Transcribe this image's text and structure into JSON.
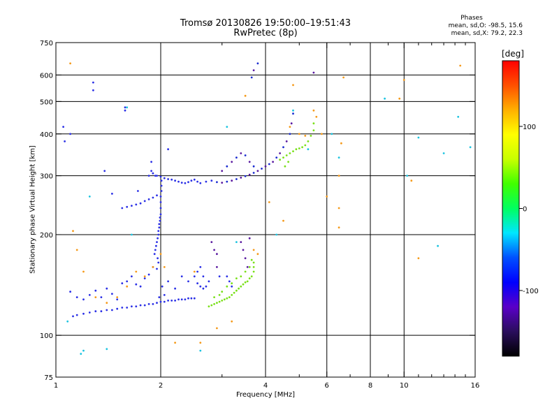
{
  "header": {
    "title": "Tromsø 20130826 19:50:00–19:51:43",
    "subtitle": "RwPretec (8p)",
    "stats_title": "Phases",
    "stats_o": "mean, sd,O:  -98.5, 15.6",
    "stats_x": "mean, sd,X:  79.2, 22.3"
  },
  "colors": {
    "grid": "#000000",
    "colorbar_stops": [
      "#000000",
      "#2a0e5c",
      "#5a00c8",
      "#0000ff",
      "#0050ff",
      "#00e6ff",
      "#00ff60",
      "#40ff00",
      "#c8ff00",
      "#ffff00",
      "#ffb000",
      "#ff5000",
      "#ff0000"
    ]
  },
  "chart_data": {
    "type": "scatter",
    "title": "Tromsø 20130826 19:50:00–19:51:43",
    "subtitle": "RwPretec (8p)",
    "xlabel": "Frequency [MHz]",
    "ylabel": "Stationary phase Virtual Height [km]",
    "x_scale": "log",
    "y_scale": "log",
    "xlim": [
      1,
      16
    ],
    "ylim": [
      75,
      750
    ],
    "x_ticks": [
      1,
      2,
      4,
      6,
      8,
      10,
      16
    ],
    "x_ticklabels": [
      "1",
      "2",
      "4",
      "6",
      "8",
      "10",
      "16"
    ],
    "x_minor_ticks": [
      3,
      5,
      7,
      9,
      11,
      12,
      13,
      14,
      15
    ],
    "x_gridlines": [
      2,
      4,
      6,
      8,
      10
    ],
    "y_ticks": [
      75,
      100,
      200,
      300,
      400,
      500,
      600,
      750
    ],
    "y_ticklabels": [
      "75",
      "100",
      "200",
      "300",
      "400",
      "500",
      "600",
      "750"
    ],
    "y_gridlines": [
      100,
      200,
      300,
      400,
      500,
      600
    ],
    "grid": true,
    "colorbar": {
      "title": "[deg]",
      "range": [
        -180,
        180
      ],
      "ticks": [
        100,
        0,
        -100
      ],
      "ticklabels": [
        "100",
        "0",
        "-100"
      ]
    },
    "series": [
      {
        "points": [
          [
            1.12,
            114
          ],
          [
            1.15,
            115
          ],
          [
            1.2,
            116
          ],
          [
            1.25,
            117
          ],
          [
            1.3,
            118
          ],
          [
            1.35,
            118
          ],
          [
            1.4,
            119
          ],
          [
            1.45,
            119
          ],
          [
            1.5,
            120
          ],
          [
            1.55,
            121
          ],
          [
            1.6,
            121
          ],
          [
            1.65,
            122
          ],
          [
            1.7,
            122
          ],
          [
            1.75,
            123
          ],
          [
            1.8,
            123
          ],
          [
            1.85,
            124
          ],
          [
            1.9,
            124
          ],
          [
            1.95,
            125
          ],
          [
            2.0,
            126
          ],
          [
            2.05,
            126
          ],
          [
            2.1,
            127
          ],
          [
            2.15,
            127
          ],
          [
            2.2,
            127
          ],
          [
            2.25,
            128
          ],
          [
            2.3,
            128
          ],
          [
            2.35,
            128
          ],
          [
            2.4,
            129
          ],
          [
            2.45,
            129
          ],
          [
            2.5,
            129
          ],
          [
            1.1,
            135
          ],
          [
            1.15,
            130
          ],
          [
            1.2,
            128
          ],
          [
            1.25,
            132
          ],
          [
            1.3,
            136
          ],
          [
            1.35,
            130
          ],
          [
            1.4,
            138
          ],
          [
            1.45,
            133
          ],
          [
            1.5,
            128
          ],
          [
            1.55,
            143
          ],
          [
            1.6,
            145
          ],
          [
            1.65,
            150
          ],
          [
            1.7,
            142
          ],
          [
            1.75,
            140
          ],
          [
            1.8,
            148
          ],
          [
            1.85,
            152
          ],
          [
            1.9,
            160
          ],
          [
            1.95,
            158
          ],
          [
            1.98,
            130
          ],
          [
            2.02,
            140
          ],
          [
            2.05,
            132
          ],
          [
            2.1,
            145
          ],
          [
            2.2,
            138
          ],
          [
            2.3,
            150
          ],
          [
            2.4,
            145
          ],
          [
            2.5,
            150
          ],
          [
            2.55,
            143
          ],
          [
            2.6,
            140
          ],
          [
            2.65,
            138
          ],
          [
            1.92,
            175
          ],
          [
            1.93,
            180
          ],
          [
            1.94,
            185
          ],
          [
            1.95,
            190
          ],
          [
            1.96,
            195
          ],
          [
            1.97,
            200
          ],
          [
            1.97,
            205
          ],
          [
            1.98,
            210
          ],
          [
            1.98,
            215
          ],
          [
            1.99,
            220
          ],
          [
            1.99,
            225
          ],
          [
            2.0,
            230
          ],
          [
            2.0,
            240
          ],
          [
            2.0,
            250
          ],
          [
            2.0,
            260
          ],
          [
            2.01,
            270
          ],
          [
            2.01,
            280
          ],
          [
            2.01,
            290
          ],
          [
            1.97,
            165
          ],
          [
            1.96,
            170
          ],
          [
            1.55,
            240
          ],
          [
            1.6,
            242
          ],
          [
            1.65,
            244
          ],
          [
            1.7,
            246
          ],
          [
            1.75,
            248
          ],
          [
            1.8,
            252
          ],
          [
            1.85,
            255
          ],
          [
            1.9,
            258
          ],
          [
            1.95,
            262
          ],
          [
            1.85,
            300
          ],
          [
            1.88,
            310
          ],
          [
            1.9,
            305
          ],
          [
            1.93,
            300
          ],
          [
            1.95,
            300
          ],
          [
            2.0,
            298
          ],
          [
            2.05,
            295
          ],
          [
            2.1,
            293
          ],
          [
            2.15,
            292
          ],
          [
            2.2,
            290
          ],
          [
            2.25,
            288
          ],
          [
            2.3,
            286
          ],
          [
            2.35,
            285
          ],
          [
            2.4,
            287
          ],
          [
            2.45,
            290
          ],
          [
            2.5,
            292
          ],
          [
            2.55,
            288
          ],
          [
            2.6,
            285
          ],
          [
            2.7,
            288
          ],
          [
            2.8,
            290
          ],
          [
            2.9,
            287
          ],
          [
            3.0,
            286
          ],
          [
            3.1,
            288
          ],
          [
            3.2,
            290
          ],
          [
            3.3,
            293
          ],
          [
            3.4,
            296
          ],
          [
            3.5,
            299
          ],
          [
            3.6,
            302
          ],
          [
            3.7,
            306
          ],
          [
            3.8,
            310
          ],
          [
            3.9,
            315
          ],
          [
            4.0,
            320
          ],
          [
            4.1,
            325
          ],
          [
            4.2,
            330
          ],
          [
            4.3,
            340
          ],
          [
            4.4,
            350
          ],
          [
            4.5,
            365
          ],
          [
            4.6,
            380
          ],
          [
            4.7,
            400
          ],
          [
            4.75,
            430
          ],
          [
            4.8,
            460
          ],
          [
            3.0,
            310
          ],
          [
            3.1,
            320
          ],
          [
            3.2,
            330
          ],
          [
            3.3,
            340
          ],
          [
            3.4,
            350
          ],
          [
            3.5,
            345
          ],
          [
            3.6,
            330
          ],
          [
            3.7,
            320
          ],
          [
            2.8,
            190
          ],
          [
            2.85,
            180
          ],
          [
            2.9,
            175
          ],
          [
            2.9,
            160
          ],
          [
            2.95,
            150
          ],
          [
            3.4,
            190
          ],
          [
            3.45,
            180
          ],
          [
            3.5,
            170
          ],
          [
            3.6,
            195
          ],
          [
            3.55,
            160
          ],
          [
            2.65,
            150
          ],
          [
            2.7,
            140
          ],
          [
            2.75,
            145
          ],
          [
            3.1,
            150
          ],
          [
            3.15,
            145
          ],
          [
            3.2,
            140
          ],
          [
            2.55,
            155
          ],
          [
            2.6,
            160
          ],
          [
            1.28,
            540
          ],
          [
            1.28,
            570
          ],
          [
            1.58,
            470
          ],
          [
            1.58,
            480
          ],
          [
            1.38,
            310
          ],
          [
            1.45,
            265
          ],
          [
            1.72,
            270
          ],
          [
            1.88,
            330
          ],
          [
            2.1,
            360
          ],
          [
            3.65,
            590
          ],
          [
            3.7,
            620
          ],
          [
            3.8,
            650
          ],
          [
            5.5,
            610
          ],
          [
            1.05,
            420
          ],
          [
            1.06,
            380
          ],
          [
            1.1,
            400
          ]
        ]
      },
      {
        "points": [
          [
            2.75,
            122
          ],
          [
            2.8,
            123
          ],
          [
            2.85,
            124
          ],
          [
            2.9,
            125
          ],
          [
            2.95,
            126
          ],
          [
            3.0,
            127
          ],
          [
            3.05,
            128
          ],
          [
            3.1,
            129
          ],
          [
            3.15,
            130
          ],
          [
            3.2,
            132
          ],
          [
            3.25,
            134
          ],
          [
            3.3,
            136
          ],
          [
            3.35,
            138
          ],
          [
            3.4,
            140
          ],
          [
            3.45,
            142
          ],
          [
            3.5,
            144
          ],
          [
            3.55,
            145
          ],
          [
            3.6,
            148
          ],
          [
            3.65,
            150
          ],
          [
            3.7,
            155
          ],
          [
            3.7,
            160
          ],
          [
            3.7,
            165
          ],
          [
            3.0,
            135
          ],
          [
            3.1,
            140
          ],
          [
            3.2,
            143
          ],
          [
            3.3,
            148
          ],
          [
            3.4,
            150
          ],
          [
            3.5,
            155
          ],
          [
            3.6,
            160
          ],
          [
            3.65,
            168
          ],
          [
            2.85,
            130
          ],
          [
            2.95,
            132
          ],
          [
            4.4,
            335
          ],
          [
            4.5,
            340
          ],
          [
            4.6,
            345
          ],
          [
            4.7,
            350
          ],
          [
            4.8,
            355
          ],
          [
            4.9,
            360
          ],
          [
            5.0,
            362
          ],
          [
            5.1,
            365
          ],
          [
            5.2,
            370
          ],
          [
            5.3,
            380
          ],
          [
            5.4,
            395
          ],
          [
            5.5,
            410
          ],
          [
            5.5,
            430
          ],
          [
            4.55,
            320
          ],
          [
            4.65,
            330
          ]
        ]
      },
      {
        "points": [
          [
            1.1,
            650
          ],
          [
            1.12,
            205
          ],
          [
            1.15,
            180
          ],
          [
            1.2,
            155
          ],
          [
            1.3,
            130
          ],
          [
            1.4,
            125
          ],
          [
            1.5,
            130
          ],
          [
            1.6,
            140
          ],
          [
            1.7,
            155
          ],
          [
            1.8,
            150
          ],
          [
            1.9,
            160
          ],
          [
            2.0,
            175
          ],
          [
            2.2,
            95
          ],
          [
            2.5,
            155
          ],
          [
            2.6,
            95
          ],
          [
            2.9,
            105
          ],
          [
            3.2,
            110
          ],
          [
            3.5,
            520
          ],
          [
            3.7,
            180
          ],
          [
            3.8,
            175
          ],
          [
            4.1,
            250
          ],
          [
            4.5,
            220
          ],
          [
            4.8,
            560
          ],
          [
            5.5,
            470
          ],
          [
            5.6,
            450
          ],
          [
            5.8,
            400
          ],
          [
            6.0,
            260
          ],
          [
            6.5,
            210
          ],
          [
            6.5,
            240
          ],
          [
            6.5,
            300
          ],
          [
            6.6,
            375
          ],
          [
            6.7,
            590
          ],
          [
            9.7,
            510
          ],
          [
            10.0,
            580
          ],
          [
            10.5,
            290
          ],
          [
            11.0,
            170
          ],
          [
            14.5,
            640
          ],
          [
            5.0,
            400
          ],
          [
            5.2,
            395
          ],
          [
            4.7,
            420
          ],
          [
            2.05,
            160
          ]
        ]
      },
      {
        "points": [
          [
            1.08,
            110
          ],
          [
            1.25,
            260
          ],
          [
            1.6,
            480
          ],
          [
            1.65,
            200
          ],
          [
            2.6,
            90
          ],
          [
            3.1,
            420
          ],
          [
            3.3,
            190
          ],
          [
            4.3,
            200
          ],
          [
            4.8,
            470
          ],
          [
            5.3,
            360
          ],
          [
            6.2,
            400
          ],
          [
            6.5,
            340
          ],
          [
            8.8,
            510
          ],
          [
            10.2,
            300
          ],
          [
            12.5,
            185
          ],
          [
            13.0,
            350
          ],
          [
            14.3,
            450
          ],
          [
            15.5,
            365
          ],
          [
            11.0,
            390
          ],
          [
            1.2,
            90
          ],
          [
            1.18,
            88
          ],
          [
            1.4,
            91
          ]
        ]
      }
    ]
  }
}
